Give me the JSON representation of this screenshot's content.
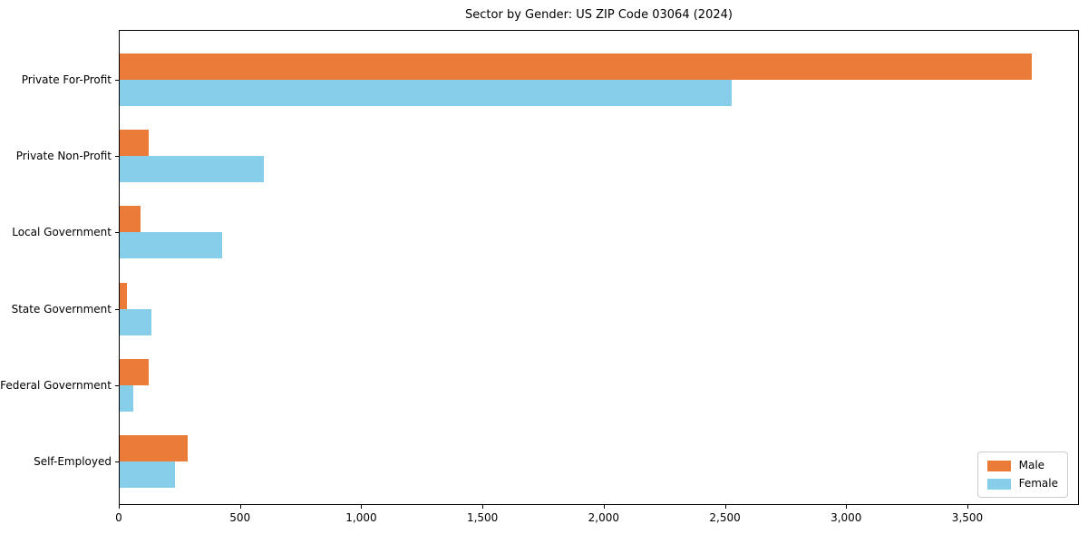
{
  "chart_data": {
    "type": "bar",
    "orientation": "horizontal",
    "title": "Sector by Gender: US ZIP Code 03064 (2024)",
    "categories": [
      "Private For-Profit",
      "Private Non-Profit",
      "Local Government",
      "State Government",
      "Federal Government",
      "Self-Employed"
    ],
    "series": [
      {
        "name": "Male",
        "color": "#EA7B38",
        "values": [
          3770,
          120,
          85,
          30,
          120,
          280
        ]
      },
      {
        "name": "Female",
        "color": "#87CEEB",
        "values": [
          2530,
          595,
          425,
          130,
          55,
          230
        ]
      }
    ],
    "xlabel": "",
    "ylabel": "",
    "xlim": [
      0,
      3960
    ],
    "xticks": [
      0,
      500,
      1000,
      1500,
      2000,
      2500,
      3000,
      3500
    ],
    "xtick_labels": [
      "0",
      "500",
      "1,000",
      "1,500",
      "2,000",
      "2,500",
      "3,000",
      "3,500"
    ],
    "grid": false,
    "legend": {
      "position": "lower right",
      "entries": [
        "Male",
        "Female"
      ]
    },
    "colors": {
      "background": "#ffffff",
      "spine": "#000000",
      "legend_border": "#cccccc"
    }
  }
}
